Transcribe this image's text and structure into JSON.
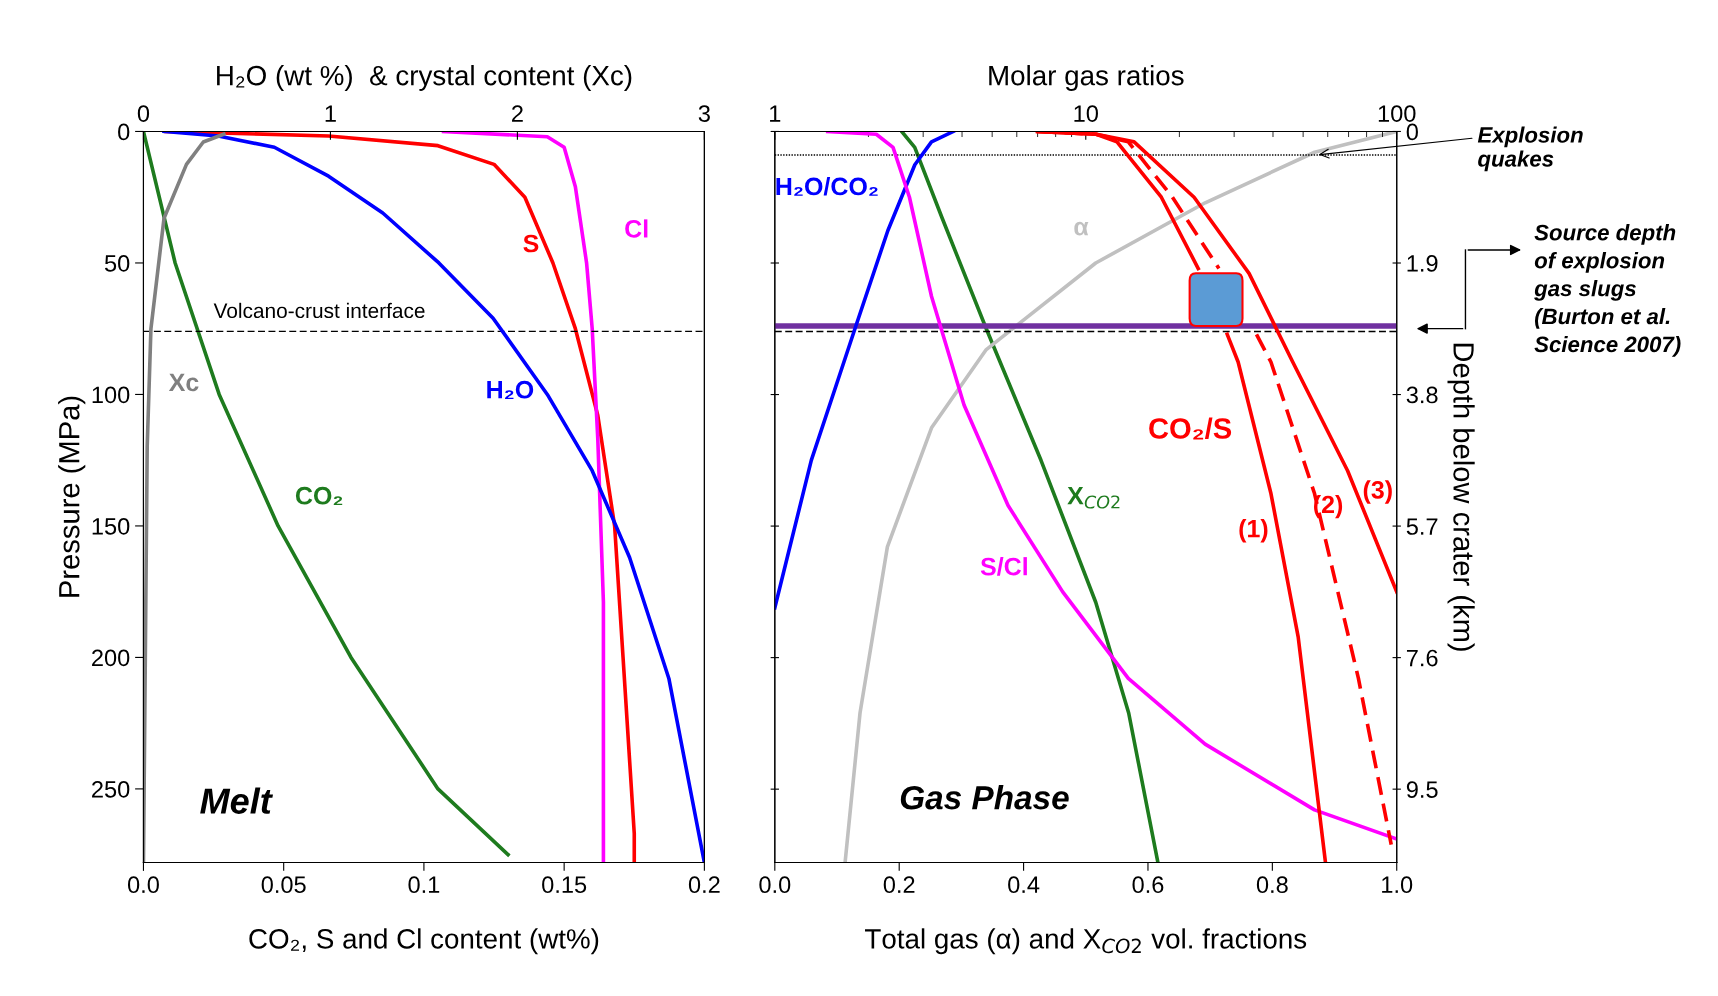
{
  "chart_data": [
    {
      "type": "line",
      "xlabel": "CO₂, S and Cl content (wt%)",
      "x2label": "H₂O (wt %)  & crystal content (Xc)",
      "ylabel": "Pressure (MPa)",
      "xlim": [
        0,
        0.2
      ],
      "xticks": [
        {
          "value": 0,
          "label": "0.0"
        },
        0.05,
        0.1,
        0.15,
        0.2
      ],
      "x2lim": [
        0,
        3
      ],
      "x2ticks": [
        0,
        1,
        2,
        3
      ],
      "ylim": [
        278,
        0
      ],
      "yticks": [
        0,
        50,
        100,
        150,
        200,
        250
      ],
      "grid": false,
      "series": [
        {
          "name": "CO₂",
          "color": "#1e7b1e",
          "x": [
            0,
            0.0113,
            0.027,
            0.048,
            0.074,
            0.105,
            0.13
          ],
          "values": [
            0,
            50,
            100,
            150,
            200,
            250,
            275
          ]
        },
        {
          "name": "S",
          "color": "#ff0000",
          "x": [
            0.008,
            0.066,
            0.105,
            0.125,
            0.136,
            0.146,
            0.154,
            0.162,
            0.168,
            0.171,
            0.175,
            0.175
          ],
          "values": [
            0,
            1.7,
            5.4,
            12.5,
            25,
            50,
            75,
            108,
            150,
            200,
            267,
            278
          ]
        },
        {
          "name": "Cl",
          "color": "#ff00ff",
          "x": [
            0.107,
            0.144,
            0.15,
            0.154,
            0.158,
            0.16,
            0.162,
            0.164,
            0.164
          ],
          "values": [
            0,
            2,
            6,
            21,
            50,
            75,
            117,
            179,
            278
          ]
        },
        {
          "name": "H₂O",
          "color": "#0000ff",
          "axis": "x2",
          "x": [
            0.11,
            0.4,
            0.7,
            0.99,
            1.28,
            1.58,
            1.87,
            2.16,
            2.4,
            2.6,
            2.81,
            3.0
          ],
          "values": [
            0,
            1.7,
            6,
            17,
            31,
            50,
            71,
            100,
            129,
            162,
            208,
            278
          ]
        },
        {
          "name": "Xc",
          "color": "#808080",
          "axis": "x2",
          "x": [
            0,
            0.01,
            0.02,
            0.04,
            0.11,
            0.23,
            0.32,
            0.43
          ],
          "values": [
            278,
            200,
            120,
            75,
            33,
            12.5,
            4,
            1
          ]
        }
      ],
      "ref_lines": [
        {
          "axis": "y",
          "value": 76,
          "label": "Volcano-crust interface",
          "color": "#000000",
          "line_style": "dashed"
        }
      ],
      "annotations": [
        "Melt"
      ]
    },
    {
      "type": "line",
      "xlabel": "Total gas (α) and X$_{CO2}$ vol. fractions",
      "x2label": "Molar gas ratios",
      "ylabel": "Depth below crater (km)",
      "xlim": [
        0,
        1
      ],
      "xticks": [
        {
          "value": 0,
          "label": "0.0"
        },
        {
          "value": 0.2,
          "label": "0.2"
        },
        {
          "value": 0.4,
          "label": "0.4"
        },
        {
          "value": 0.6,
          "label": "0.6"
        },
        {
          "value": 0.8,
          "label": "0.8"
        },
        {
          "value": 1,
          "label": "1.0"
        }
      ],
      "x2lim": [
        1,
        100
      ],
      "x2ticks": [
        1,
        10,
        100
      ],
      "log": "x2",
      "ylim": [
        10.56,
        0
      ],
      "yticks": [
        0,
        1.9,
        3.8,
        5.7,
        7.6,
        9.5
      ],
      "grid": false,
      "series": [
        {
          "name": "H₂O/CO₂",
          "color": "#0000ff",
          "axis": "x2",
          "x": [
            1,
            1.31,
            1.81,
            2.31,
            2.82,
            3.19,
            3.75
          ],
          "values": [
            6.88,
            4.75,
            2.85,
            1.43,
            0.48,
            0.15,
            0
          ]
        },
        {
          "name": "S/Cl",
          "color": "#ff00ff",
          "axis": "x2",
          "x": [
            1.48,
            2.12,
            2.4,
            2.71,
            3.19,
            4.06,
            5.62,
            8.43,
            13.7,
            24.2,
            54.4,
            100
          ],
          "values": [
            0,
            0.04,
            0.23,
            0.95,
            2.38,
            3.95,
            5.4,
            6.65,
            7.9,
            8.85,
            9.8,
            10.22
          ]
        },
        {
          "name": "X$_{CO2}$",
          "color": "#1e7b1e",
          "x": [
            0.204,
            0.225,
            0.269,
            0.34,
            0.428,
            0.516,
            0.569,
            0.616
          ],
          "values": [
            0,
            0.23,
            1.25,
            2.85,
            4.75,
            6.8,
            8.4,
            10.56
          ]
        },
        {
          "name": "α",
          "color": "#c0c0c0",
          "x": [
            0.113,
            0.137,
            0.181,
            0.252,
            0.34,
            0.516,
            0.692,
            0.868,
            1.0
          ],
          "values": [
            10.56,
            8.4,
            6.0,
            4.28,
            3.15,
            1.9,
            1.03,
            0.3,
            0
          ]
        },
        {
          "name": "(1)",
          "color": "#ff0000",
          "axis": "x2",
          "x": [
            7,
            10.8,
            12.6,
            17.5,
            23.0,
            24.2,
            28.5,
            30.9,
            39.4,
            48.2,
            59
          ],
          "values": [
            0,
            0.04,
            0.15,
            0.95,
            1.98,
            null,
            2.93,
            3.33,
            5.23,
            7.3,
            10.56
          ]
        },
        {
          "name": "(2)",
          "color": "#ff0000",
          "axis": "x2",
          "line_style": "dashed",
          "x": [
            7,
            10.8,
            13.7,
            19,
            26.8,
            28.5,
            35.4,
            39.4,
            54.4,
            75.3,
            96
          ],
          "values": [
            0,
            0.04,
            0.15,
            0.95,
            1.98,
            null,
            2.93,
            3.33,
            5.23,
            7.9,
            10.3
          ]
        },
        {
          "name": "(3)",
          "color": "#ff0000",
          "axis": "x2",
          "x": [
            7,
            10.8,
            14.3,
            22.3,
            33.5,
            46.3,
            69.5,
            100
          ],
          "values": [
            0,
            0.04,
            0.15,
            0.95,
            2.05,
            3.33,
            4.9,
            6.65
          ]
        }
      ],
      "ref_lines": [
        {
          "axis": "y",
          "value": 2.89,
          "color": "#000000",
          "line_style": "dashed"
        },
        {
          "axis": "y",
          "value": 2.81,
          "color": "#7030a0",
          "line_style": "solid"
        },
        {
          "axis": "y",
          "value": 0.34,
          "label": "Explosion\nquakes",
          "color": "#000000",
          "line_style": "dotted"
        }
      ],
      "annotations": [
        "CO₂/S",
        "Gas Phase",
        "Source depth\nof explosion\ngas slugs\n(Burton et al.\nScience 2007)"
      ]
    }
  ]
}
